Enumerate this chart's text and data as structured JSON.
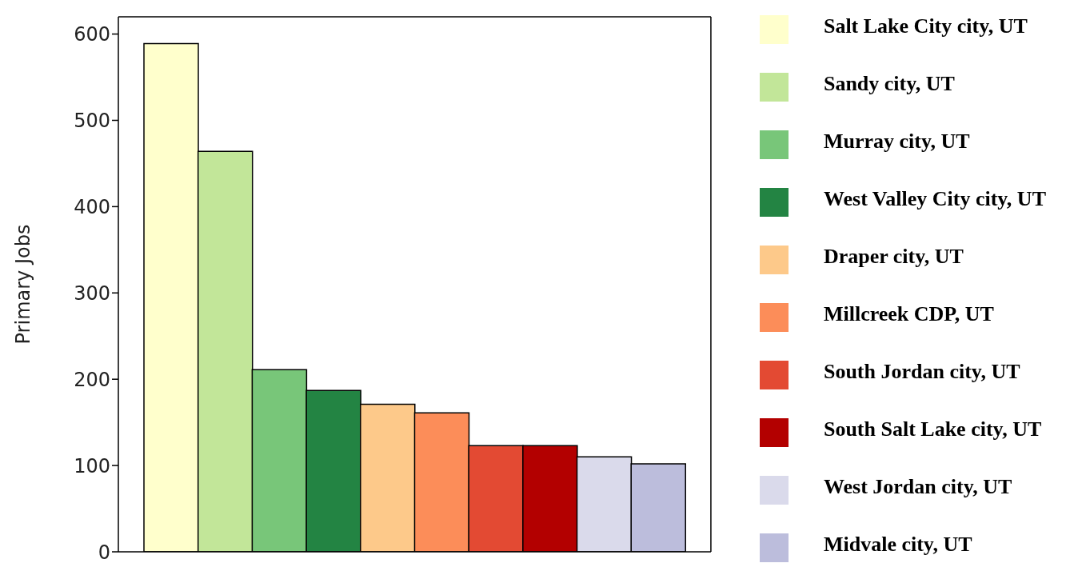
{
  "chart_data": {
    "type": "bar",
    "ylabel": "Primary Jobs",
    "stacked": true,
    "categories": [
      null,
      null,
      null,
      null,
      null,
      null,
      null,
      null,
      null,
      null
    ],
    "series": [
      {
        "name": "Salt Lake City city, UT",
        "color": "#ffffcc",
        "values": [
          589,
          null,
          null,
          null,
          null,
          null,
          null,
          null,
          null,
          null
        ]
      },
      {
        "name": "Sandy city, UT",
        "color": "#c2e699",
        "values": [
          null,
          464,
          null,
          null,
          null,
          null,
          null,
          null,
          null,
          null
        ]
      },
      {
        "name": "Murray city, UT",
        "color": "#78c679",
        "values": [
          null,
          null,
          211,
          null,
          null,
          null,
          null,
          null,
          null,
          null
        ]
      },
      {
        "name": "West Valley City city, UT",
        "color": "#238443",
        "values": [
          null,
          null,
          null,
          187,
          null,
          null,
          null,
          null,
          null,
          null
        ]
      },
      {
        "name": "Draper city, UT",
        "color": "#fdc98a",
        "values": [
          null,
          null,
          null,
          null,
          171,
          null,
          null,
          null,
          null,
          null
        ]
      },
      {
        "name": "Millcreek CDP, UT",
        "color": "#fc8d59",
        "values": [
          null,
          null,
          null,
          null,
          null,
          161,
          null,
          null,
          null,
          null
        ]
      },
      {
        "name": "South Jordan city, UT",
        "color": "#e34a33",
        "values": [
          null,
          null,
          null,
          null,
          null,
          null,
          123,
          null,
          null,
          null
        ]
      },
      {
        "name": "South Salt Lake city, UT",
        "color": "#b30000",
        "values": [
          null,
          null,
          null,
          null,
          null,
          null,
          null,
          123,
          null,
          null
        ]
      },
      {
        "name": "West Jordan city, UT",
        "color": "#dadaeb",
        "values": [
          null,
          null,
          null,
          null,
          null,
          null,
          null,
          null,
          110,
          null
        ]
      },
      {
        "name": "Midvale city, UT",
        "color": "#bcbddc",
        "values": [
          null,
          null,
          null,
          null,
          null,
          null,
          null,
          null,
          null,
          102
        ]
      }
    ],
    "ylim": [
      0,
      620
    ],
    "yticks": [
      0,
      100,
      200,
      300,
      400,
      500,
      600
    ],
    "legend": "right"
  }
}
